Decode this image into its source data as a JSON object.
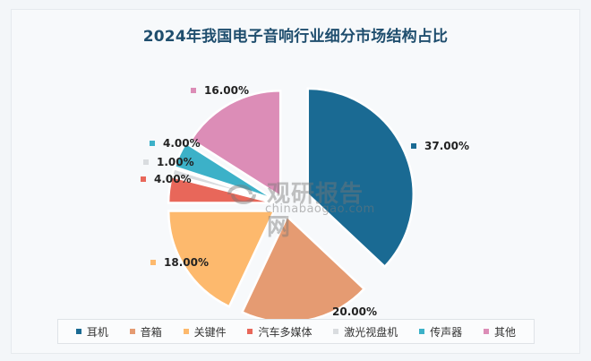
{
  "title": "2024年我国电子音响行业细分市场结构占比",
  "watermark": {
    "cn": "观研报告网",
    "en": "chinabaogao.com"
  },
  "labels": {
    "earphone": "37.00%",
    "speaker": "20.00%",
    "key_parts": "18.00%",
    "car_media": "4.00%",
    "laser_disc": "1.00%",
    "microphone": "4.00%",
    "other": "16.00%"
  },
  "legend": {
    "items": [
      {
        "label": "耳机",
        "color": "#1a6a93"
      },
      {
        "label": "音箱",
        "color": "#e59b72"
      },
      {
        "label": "关键件",
        "color": "#fdb96d"
      },
      {
        "label": "汽车多媒体",
        "color": "#e8675a"
      },
      {
        "label": "激光视盘机",
        "color": "#d9dcdf"
      },
      {
        "label": "传声器",
        "color": "#3cb1c8"
      },
      {
        "label": "其他",
        "color": "#dc8db7"
      }
    ]
  },
  "chart_data": {
    "type": "pie",
    "title": "2024年我国电子音响行业细分市场结构占比",
    "categories": [
      "耳机",
      "音箱",
      "关键件",
      "汽车多媒体",
      "激光视盘机",
      "传声器",
      "其他"
    ],
    "values": [
      37.0,
      20.0,
      18.0,
      4.0,
      1.0,
      4.0,
      16.0
    ],
    "unit": "%",
    "colors": [
      "#1a6a93",
      "#e59b72",
      "#fdb96d",
      "#e8675a",
      "#d9dcdf",
      "#3cb1c8",
      "#dc8db7"
    ],
    "start_angle": "12 o'clock",
    "direction": "clockwise",
    "exploded": true,
    "legend_position": "bottom",
    "data_labels": [
      "37.00%",
      "20.00%",
      "18.00%",
      "4.00%",
      "1.00%",
      "4.00%",
      "16.00%"
    ]
  }
}
